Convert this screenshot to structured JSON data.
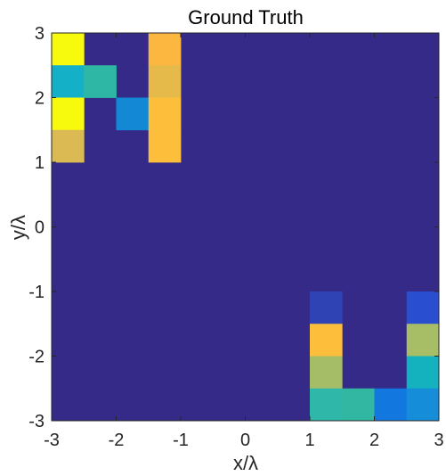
{
  "chart_data": {
    "type": "heatmap",
    "title": "Ground Truth",
    "xlabel": "x/λ",
    "ylabel": "y/λ",
    "xlim": [
      -3,
      3
    ],
    "ylim": [
      -3,
      3
    ],
    "x_ticks": [
      "-3",
      "-2",
      "-1",
      "0",
      "1",
      "2",
      "3"
    ],
    "y_ticks": [
      "-3",
      "-2",
      "-1",
      "0",
      "1",
      "2",
      "3"
    ],
    "grid": false,
    "colormap": "parula",
    "background_color": "#352a87",
    "cell_size": 0.5,
    "cells": [
      {
        "x": -2.75,
        "y": 2.75,
        "color": "#f8fa0d"
      },
      {
        "x": -2.75,
        "y": 2.25,
        "color": "#14b0c8"
      },
      {
        "x": -2.75,
        "y": 1.75,
        "color": "#f8fa0d"
      },
      {
        "x": -2.75,
        "y": 1.25,
        "color": "#dbba54"
      },
      {
        "x": -2.25,
        "y": 2.25,
        "color": "#2eb7a4"
      },
      {
        "x": -1.75,
        "y": 1.75,
        "color": "#1389d6"
      },
      {
        "x": -1.25,
        "y": 2.75,
        "color": "#fbb740"
      },
      {
        "x": -1.25,
        "y": 2.25,
        "color": "#e6ba4a"
      },
      {
        "x": -1.25,
        "y": 1.75,
        "color": "#fdbe3c"
      },
      {
        "x": -1.25,
        "y": 1.25,
        "color": "#fdbe3c"
      },
      {
        "x": 1.25,
        "y": -1.25,
        "color": "#2f43b4"
      },
      {
        "x": 1.25,
        "y": -1.75,
        "color": "#fdbe3c"
      },
      {
        "x": 1.25,
        "y": -2.25,
        "color": "#a6bd68"
      },
      {
        "x": 1.25,
        "y": -2.75,
        "color": "#2fb8aa"
      },
      {
        "x": 1.75,
        "y": -2.75,
        "color": "#31b7a2"
      },
      {
        "x": 2.25,
        "y": -2.75,
        "color": "#1278e0"
      },
      {
        "x": 2.75,
        "y": -1.25,
        "color": "#2a4ed0"
      },
      {
        "x": 2.75,
        "y": -1.75,
        "color": "#a8be66"
      },
      {
        "x": 2.75,
        "y": -2.25,
        "color": "#13b2be"
      },
      {
        "x": 2.75,
        "y": -2.75,
        "color": "#158dd8"
      }
    ]
  }
}
